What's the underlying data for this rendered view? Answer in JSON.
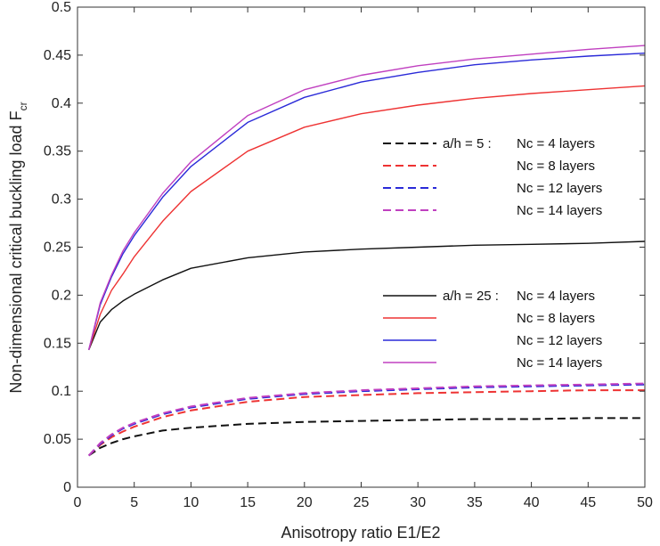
{
  "chart_data": {
    "type": "line",
    "xlabel": "Anisotropy ratio E1/E2",
    "ylabel_main": "Non-dimensional critical buckling load F",
    "ylabel_sub": "cr",
    "xlim": [
      0,
      50
    ],
    "ylim": [
      0,
      0.5
    ],
    "xticks": [
      0,
      5,
      10,
      15,
      20,
      25,
      30,
      35,
      40,
      45,
      50
    ],
    "yticks": [
      0,
      0.05,
      0.1,
      0.15,
      0.2,
      0.25,
      0.3,
      0.35,
      0.4,
      0.45,
      0.5
    ],
    "grid": false,
    "colors": {
      "black": "#111111",
      "red": "#ee3333",
      "blue": "#2a2ad8",
      "magenta": "#c040c0"
    },
    "legend_groups": [
      {
        "placement": "center-right",
        "entries": [
          {
            "series": "ah5_nc4",
            "prefix": "a/h = 5  :",
            "text": "Nc = 4  layers"
          },
          {
            "series": "ah5_nc8",
            "prefix": "",
            "text": "Nc = 8  layers"
          },
          {
            "series": "ah5_nc12",
            "prefix": "",
            "text": "Nc = 12 layers"
          },
          {
            "series": "ah5_nc14",
            "prefix": "",
            "text": "Nc = 14 layers"
          }
        ]
      },
      {
        "placement": "lower-right",
        "entries": [
          {
            "series": "ah25_nc4",
            "prefix": "a/h = 25 :",
            "text": "Nc = 4   layers"
          },
          {
            "series": "ah25_nc8",
            "prefix": "",
            "text": "Nc = 8   layers"
          },
          {
            "series": "ah25_nc12",
            "prefix": "",
            "text": "Nc = 12 layers"
          },
          {
            "series": "ah25_nc14",
            "prefix": "",
            "text": "Nc = 14 layers"
          }
        ]
      }
    ],
    "x": [
      1,
      2,
      3,
      4,
      5,
      7.5,
      10,
      15,
      20,
      25,
      30,
      35,
      40,
      45,
      50
    ],
    "series": [
      {
        "id": "ah25_nc4",
        "name": "a/h = 25 : Nc = 4 layers",
        "color": "black",
        "dash": false,
        "values": [
          0.143,
          0.172,
          0.185,
          0.194,
          0.201,
          0.216,
          0.228,
          0.239,
          0.245,
          0.248,
          0.25,
          0.252,
          0.253,
          0.254,
          0.256
        ]
      },
      {
        "id": "ah25_nc8",
        "name": "a/h = 25 : Nc = 8 layers",
        "color": "red",
        "dash": false,
        "values": [
          0.143,
          0.18,
          0.205,
          0.222,
          0.24,
          0.277,
          0.308,
          0.35,
          0.375,
          0.389,
          0.398,
          0.405,
          0.41,
          0.414,
          0.418
        ]
      },
      {
        "id": "ah25_nc12",
        "name": "a/h = 25 : Nc = 12 layers",
        "color": "blue",
        "dash": false,
        "values": [
          0.143,
          0.19,
          0.219,
          0.243,
          0.262,
          0.302,
          0.334,
          0.38,
          0.406,
          0.422,
          0.432,
          0.44,
          0.445,
          0.449,
          0.452
        ]
      },
      {
        "id": "ah25_nc14",
        "name": "a/h = 25 : Nc = 14 layers",
        "color": "magenta",
        "dash": false,
        "values": [
          0.143,
          0.192,
          0.221,
          0.246,
          0.265,
          0.306,
          0.339,
          0.387,
          0.414,
          0.429,
          0.439,
          0.446,
          0.451,
          0.456,
          0.46
        ]
      },
      {
        "id": "ah5_nc4",
        "name": "a/h = 5 : Nc = 4 layers",
        "color": "black",
        "dash": true,
        "values": [
          0.033,
          0.041,
          0.046,
          0.05,
          0.053,
          0.059,
          0.062,
          0.066,
          0.068,
          0.069,
          0.07,
          0.071,
          0.071,
          0.072,
          0.072
        ]
      },
      {
        "id": "ah5_nc8",
        "name": "a/h = 5 : Nc = 8 layers",
        "color": "red",
        "dash": true,
        "values": [
          0.033,
          0.044,
          0.052,
          0.058,
          0.063,
          0.073,
          0.08,
          0.089,
          0.094,
          0.096,
          0.098,
          0.099,
          0.1,
          0.101,
          0.101
        ]
      },
      {
        "id": "ah5_nc12",
        "name": "a/h = 5 : Nc = 12 layers",
        "color": "blue",
        "dash": true,
        "values": [
          0.033,
          0.045,
          0.054,
          0.061,
          0.066,
          0.076,
          0.083,
          0.092,
          0.097,
          0.1,
          0.102,
          0.104,
          0.105,
          0.106,
          0.107
        ]
      },
      {
        "id": "ah5_nc14",
        "name": "a/h = 5 : Nc = 14 layers",
        "color": "magenta",
        "dash": true,
        "values": [
          0.033,
          0.046,
          0.055,
          0.062,
          0.067,
          0.077,
          0.084,
          0.093,
          0.098,
          0.101,
          0.103,
          0.105,
          0.106,
          0.107,
          0.108
        ]
      }
    ]
  }
}
